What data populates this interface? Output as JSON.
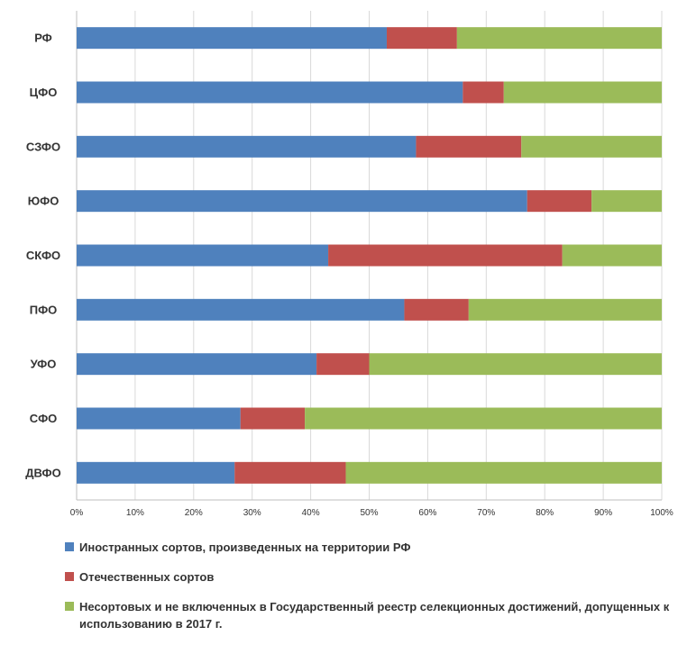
{
  "chart_data": {
    "type": "bar",
    "orientation": "horizontal",
    "stacked": true,
    "percent_stacked": true,
    "categories": [
      "РФ",
      "ЦФО",
      "СЗФО",
      "ЮФО",
      "СКФО",
      "ПФО",
      "УФО",
      "СФО",
      "ДВФО"
    ],
    "series": [
      {
        "name": "Иностранных сортов, произведенных на территории РФ",
        "color": "#4f81bd",
        "values": [
          53,
          66,
          58,
          77,
          43,
          56,
          41,
          28,
          27
        ]
      },
      {
        "name": "Отечественных сортов",
        "color": "#c0504d",
        "values": [
          12,
          7,
          18,
          11,
          40,
          11,
          9,
          11,
          19
        ]
      },
      {
        "name": "Несортовых и не включенных в Государственный реестр селекционных достижений, допущенных к использованию в 2017 г.",
        "color": "#9bbb59",
        "values": [
          35,
          27,
          24,
          12,
          17,
          33,
          50,
          61,
          54
        ]
      }
    ],
    "xlim": [
      0,
      100
    ],
    "x_ticks": [
      "0%",
      "10%",
      "20%",
      "30%",
      "40%",
      "50%",
      "60%",
      "70%",
      "80%",
      "90%",
      "100%"
    ],
    "grid": true,
    "legend_position": "bottom"
  }
}
